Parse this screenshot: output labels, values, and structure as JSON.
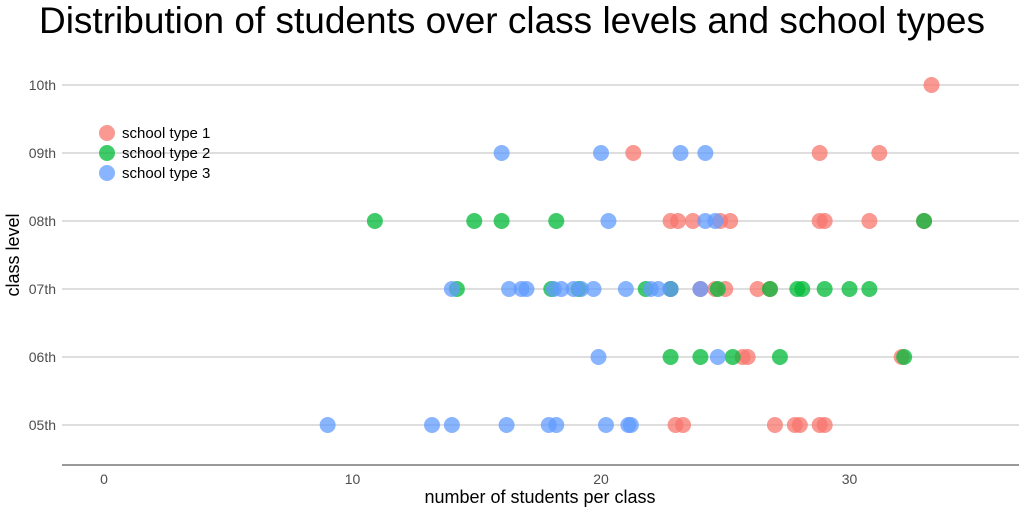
{
  "chart_data": {
    "type": "scatter",
    "title": "Distribution of students over class levels and school types",
    "xlabel": "number of students per class",
    "ylabel": "class level",
    "xlim": [
      -1.7,
      36.5
    ],
    "x_ticks": [
      0,
      10,
      20,
      30
    ],
    "categories": [
      "05th",
      "06th",
      "07th",
      "08th",
      "09th",
      "10th"
    ],
    "grid": "horizontal",
    "legend_position": "top-left",
    "series": [
      {
        "name": "school type 1",
        "color": "#F8766D",
        "points": [
          {
            "x": 23.0,
            "y": "05th"
          },
          {
            "x": 23.3,
            "y": "05th"
          },
          {
            "x": 27.0,
            "y": "05th"
          },
          {
            "x": 27.8,
            "y": "05th"
          },
          {
            "x": 28.0,
            "y": "05th"
          },
          {
            "x": 28.8,
            "y": "05th"
          },
          {
            "x": 29.0,
            "y": "05th"
          },
          {
            "x": 25.7,
            "y": "06th"
          },
          {
            "x": 25.9,
            "y": "06th"
          },
          {
            "x": 32.1,
            "y": "06th"
          },
          {
            "x": 22.8,
            "y": "07th"
          },
          {
            "x": 24.0,
            "y": "07th"
          },
          {
            "x": 24.6,
            "y": "07th"
          },
          {
            "x": 25.0,
            "y": "07th"
          },
          {
            "x": 26.3,
            "y": "07th"
          },
          {
            "x": 26.8,
            "y": "07th"
          },
          {
            "x": 22.8,
            "y": "08th"
          },
          {
            "x": 23.1,
            "y": "08th"
          },
          {
            "x": 23.7,
            "y": "08th"
          },
          {
            "x": 24.8,
            "y": "08th"
          },
          {
            "x": 25.2,
            "y": "08th"
          },
          {
            "x": 28.8,
            "y": "08th"
          },
          {
            "x": 29.0,
            "y": "08th"
          },
          {
            "x": 30.8,
            "y": "08th"
          },
          {
            "x": 33.0,
            "y": "08th"
          },
          {
            "x": 21.3,
            "y": "09th"
          },
          {
            "x": 28.8,
            "y": "09th"
          },
          {
            "x": 31.2,
            "y": "09th"
          },
          {
            "x": 33.3,
            "y": "10th"
          }
        ]
      },
      {
        "name": "school type 2",
        "color": "#00BA38",
        "points": [
          {
            "x": 22.8,
            "y": "06th"
          },
          {
            "x": 24.0,
            "y": "06th"
          },
          {
            "x": 25.3,
            "y": "06th"
          },
          {
            "x": 27.2,
            "y": "06th"
          },
          {
            "x": 32.2,
            "y": "06th"
          },
          {
            "x": 14.2,
            "y": "07th"
          },
          {
            "x": 18.0,
            "y": "07th"
          },
          {
            "x": 19.1,
            "y": "07th"
          },
          {
            "x": 21.8,
            "y": "07th"
          },
          {
            "x": 22.8,
            "y": "07th"
          },
          {
            "x": 24.7,
            "y": "07th"
          },
          {
            "x": 26.8,
            "y": "07th"
          },
          {
            "x": 27.9,
            "y": "07th"
          },
          {
            "x": 28.1,
            "y": "07th"
          },
          {
            "x": 29.0,
            "y": "07th"
          },
          {
            "x": 30.0,
            "y": "07th"
          },
          {
            "x": 30.8,
            "y": "07th"
          },
          {
            "x": 10.9,
            "y": "08th"
          },
          {
            "x": 14.9,
            "y": "08th"
          },
          {
            "x": 16.0,
            "y": "08th"
          },
          {
            "x": 18.2,
            "y": "08th"
          },
          {
            "x": 33.0,
            "y": "08th"
          }
        ]
      },
      {
        "name": "school type 3",
        "color": "#619CFF",
        "points": [
          {
            "x": 9.0,
            "y": "05th"
          },
          {
            "x": 13.2,
            "y": "05th"
          },
          {
            "x": 14.0,
            "y": "05th"
          },
          {
            "x": 16.2,
            "y": "05th"
          },
          {
            "x": 17.9,
            "y": "05th"
          },
          {
            "x": 18.2,
            "y": "05th"
          },
          {
            "x": 20.2,
            "y": "05th"
          },
          {
            "x": 21.1,
            "y": "05th"
          },
          {
            "x": 21.2,
            "y": "05th"
          },
          {
            "x": 19.9,
            "y": "06th"
          },
          {
            "x": 24.7,
            "y": "06th"
          },
          {
            "x": 14.0,
            "y": "07th"
          },
          {
            "x": 16.3,
            "y": "07th"
          },
          {
            "x": 16.8,
            "y": "07th"
          },
          {
            "x": 17.0,
            "y": "07th"
          },
          {
            "x": 18.1,
            "y": "07th"
          },
          {
            "x": 18.4,
            "y": "07th"
          },
          {
            "x": 18.9,
            "y": "07th"
          },
          {
            "x": 19.2,
            "y": "07th"
          },
          {
            "x": 19.7,
            "y": "07th"
          },
          {
            "x": 21.0,
            "y": "07th"
          },
          {
            "x": 22.0,
            "y": "07th"
          },
          {
            "x": 22.3,
            "y": "07th"
          },
          {
            "x": 22.8,
            "y": "07th"
          },
          {
            "x": 24.0,
            "y": "07th"
          },
          {
            "x": 20.3,
            "y": "08th"
          },
          {
            "x": 24.2,
            "y": "08th"
          },
          {
            "x": 24.6,
            "y": "08th"
          },
          {
            "x": 16.0,
            "y": "09th"
          },
          {
            "x": 20.0,
            "y": "09th"
          },
          {
            "x": 23.2,
            "y": "09th"
          },
          {
            "x": 24.2,
            "y": "09th"
          }
        ]
      }
    ]
  }
}
